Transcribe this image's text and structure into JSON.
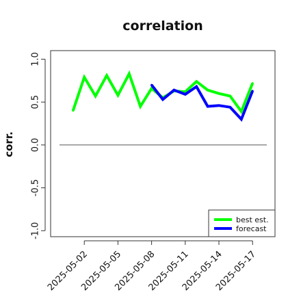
{
  "chart_data": {
    "type": "line",
    "title": "correlation",
    "xlabel": "",
    "ylabel": "corr.",
    "ylim": [
      -1.0,
      1.0
    ],
    "yticks": [
      "-1.0",
      "-0.5",
      "0.0",
      "0.5",
      "1.0"
    ],
    "yticks_values": [
      -1.0,
      -0.5,
      0.0,
      0.5,
      1.0
    ],
    "xtick_labels": [
      "2025-05-02",
      "2025-05-05",
      "2025-05-08",
      "2025-05-11",
      "2025-05-14",
      "2025-05-17"
    ],
    "xtick_dates": [
      "2025-05-02",
      "2025-05-05",
      "2025-05-08",
      "2025-05-11",
      "2025-05-14",
      "2025-05-17"
    ],
    "highlighted_xtick": "2025-05-08",
    "highlight_color": "#228B22",
    "x_range": [
      "2025-04-29",
      "2025-05-19"
    ],
    "reference_line": 0.0,
    "grid": false,
    "legend_position": "bottom-right",
    "series": [
      {
        "name": "best est.",
        "color": "#00FF00",
        "x": [
          "2025-05-01",
          "2025-05-02",
          "2025-05-03",
          "2025-05-04",
          "2025-05-05",
          "2025-05-06",
          "2025-05-07",
          "2025-05-08",
          "2025-05-09",
          "2025-05-10",
          "2025-05-11",
          "2025-05-12",
          "2025-05-13",
          "2025-05-14",
          "2025-05-15",
          "2025-05-16",
          "2025-05-17"
        ],
        "values": [
          0.4,
          0.79,
          0.57,
          0.81,
          0.58,
          0.83,
          0.45,
          0.66,
          0.55,
          0.63,
          0.62,
          0.74,
          0.64,
          0.6,
          0.57,
          0.39,
          0.72
        ]
      },
      {
        "name": "forecast",
        "color": "#0000FF",
        "x": [
          "2025-05-08",
          "2025-05-09",
          "2025-05-10",
          "2025-05-11",
          "2025-05-12",
          "2025-05-13",
          "2025-05-14",
          "2025-05-15",
          "2025-05-16",
          "2025-05-17"
        ],
        "values": [
          0.7,
          0.53,
          0.64,
          0.59,
          0.68,
          0.45,
          0.46,
          0.44,
          0.3,
          0.63
        ]
      }
    ]
  }
}
